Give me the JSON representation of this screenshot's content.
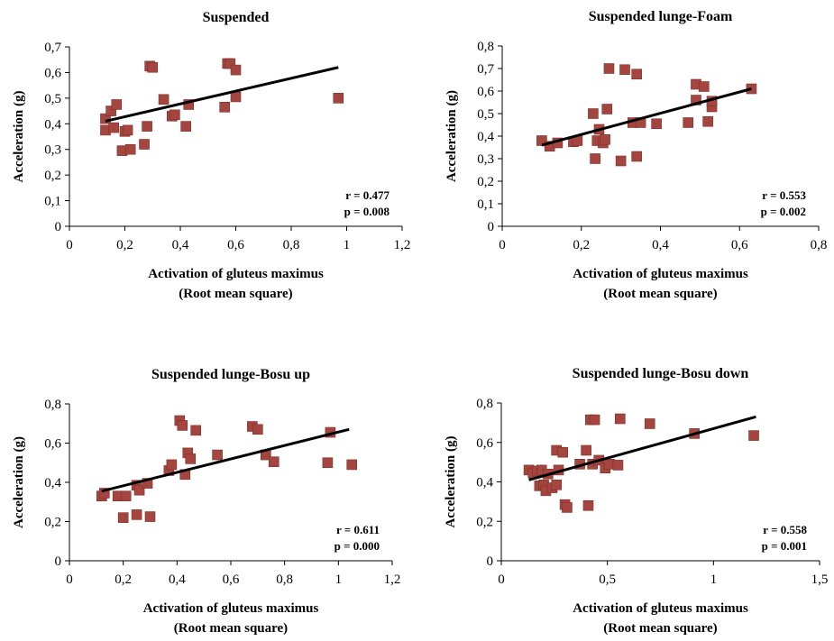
{
  "chart_data": [
    {
      "type": "scatter",
      "title": "Suspended",
      "xlabel": [
        "Activation of gluteus maximus",
        "(Root mean square)"
      ],
      "ylabel": "Acceleration (g)",
      "xlim": [
        0,
        1.2
      ],
      "ylim": [
        0,
        0.7
      ],
      "xticks": [
        0,
        0.2,
        0.4,
        0.6,
        0.8,
        1,
        1.2
      ],
      "yticks": [
        0,
        0.1,
        0.2,
        0.3,
        0.4,
        0.5,
        0.6,
        0.7
      ],
      "xtick_labels": [
        "0",
        "0,2",
        "0,4",
        "0,6",
        "0,8",
        "1",
        "1,2"
      ],
      "ytick_labels": [
        "0",
        "0,1",
        "0,2",
        "0,3",
        "0,4",
        "0,5",
        "0,6",
        "0,7"
      ],
      "grid": false,
      "stats": [
        "r = 0.477",
        "p = 0.008"
      ],
      "trendline": {
        "x": [
          0.13,
          0.97
        ],
        "y": [
          0.41,
          0.62
        ]
      },
      "points": [
        [
          0.13,
          0.42
        ],
        [
          0.13,
          0.375
        ],
        [
          0.15,
          0.45
        ],
        [
          0.16,
          0.385
        ],
        [
          0.17,
          0.475
        ],
        [
          0.19,
          0.295
        ],
        [
          0.2,
          0.37
        ],
        [
          0.21,
          0.375
        ],
        [
          0.22,
          0.3
        ],
        [
          0.27,
          0.32
        ],
        [
          0.28,
          0.39
        ],
        [
          0.29,
          0.625
        ],
        [
          0.3,
          0.62
        ],
        [
          0.34,
          0.495
        ],
        [
          0.37,
          0.43
        ],
        [
          0.38,
          0.435
        ],
        [
          0.42,
          0.39
        ],
        [
          0.43,
          0.475
        ],
        [
          0.56,
          0.465
        ],
        [
          0.57,
          0.635
        ],
        [
          0.58,
          0.635
        ],
        [
          0.6,
          0.61
        ],
        [
          0.6,
          0.505
        ],
        [
          0.97,
          0.5
        ]
      ]
    },
    {
      "type": "scatter",
      "title": "Suspended lunge-Foam",
      "xlabel": [
        "Activation of gluteus maximus",
        "(Root mean square)"
      ],
      "ylabel": "Acceleration (g)",
      "xlim": [
        0,
        0.8
      ],
      "ylim": [
        0,
        0.8
      ],
      "xticks": [
        0,
        0.2,
        0.4,
        0.6,
        0.8
      ],
      "yticks": [
        0,
        0.1,
        0.2,
        0.3,
        0.4,
        0.5,
        0.6,
        0.7,
        0.8
      ],
      "xtick_labels": [
        "0",
        "0,2",
        "0,4",
        "0,6",
        "0,8"
      ],
      "ytick_labels": [
        "0",
        "0,1",
        "0,2",
        "0,3",
        "0,4",
        "0,5",
        "0,6",
        "0,7",
        "0,8"
      ],
      "grid": false,
      "stats": [
        "r = 0.553",
        "p = 0.002"
      ],
      "trendline": {
        "x": [
          0.1,
          0.63
        ],
        "y": [
          0.36,
          0.61
        ]
      },
      "points": [
        [
          0.1,
          0.38
        ],
        [
          0.12,
          0.355
        ],
        [
          0.14,
          0.37
        ],
        [
          0.18,
          0.375
        ],
        [
          0.19,
          0.38
        ],
        [
          0.23,
          0.5
        ],
        [
          0.235,
          0.3
        ],
        [
          0.24,
          0.38
        ],
        [
          0.245,
          0.43
        ],
        [
          0.255,
          0.37
        ],
        [
          0.26,
          0.385
        ],
        [
          0.265,
          0.52
        ],
        [
          0.27,
          0.7
        ],
        [
          0.3,
          0.29
        ],
        [
          0.31,
          0.695
        ],
        [
          0.33,
          0.46
        ],
        [
          0.34,
          0.31
        ],
        [
          0.34,
          0.675
        ],
        [
          0.35,
          0.46
        ],
        [
          0.39,
          0.455
        ],
        [
          0.47,
          0.46
        ],
        [
          0.49,
          0.63
        ],
        [
          0.49,
          0.56
        ],
        [
          0.51,
          0.62
        ],
        [
          0.52,
          0.465
        ],
        [
          0.53,
          0.53
        ],
        [
          0.53,
          0.555
        ],
        [
          0.63,
          0.61
        ]
      ]
    },
    {
      "type": "scatter",
      "title": "Suspended lunge-Bosu up",
      "xlabel": [
        "Activation of gluteus maximus",
        "(Root mean square)"
      ],
      "ylabel": "Acceleration (g)",
      "xlim": [
        0,
        1.2
      ],
      "ylim": [
        0,
        0.8
      ],
      "xticks": [
        0,
        0.2,
        0.4,
        0.6,
        0.8,
        1,
        1.2
      ],
      "yticks": [
        0,
        0.2,
        0.4,
        0.6,
        0.8
      ],
      "xtick_labels": [
        "0",
        "0,2",
        "0,4",
        "0,6",
        "0,8",
        "1",
        "1,2"
      ],
      "ytick_labels": [
        "0",
        "0,2",
        "0,4",
        "0,6",
        "0,8"
      ],
      "grid": false,
      "stats": [
        "r = 0.611",
        "p = 0.000"
      ],
      "trendline": {
        "x": [
          0.12,
          1.04
        ],
        "y": [
          0.355,
          0.67
        ]
      },
      "points": [
        [
          0.12,
          0.33
        ],
        [
          0.13,
          0.345
        ],
        [
          0.18,
          0.33
        ],
        [
          0.2,
          0.22
        ],
        [
          0.21,
          0.33
        ],
        [
          0.25,
          0.235
        ],
        [
          0.25,
          0.385
        ],
        [
          0.26,
          0.36
        ],
        [
          0.29,
          0.395
        ],
        [
          0.3,
          0.225
        ],
        [
          0.37,
          0.46
        ],
        [
          0.38,
          0.49
        ],
        [
          0.41,
          0.715
        ],
        [
          0.42,
          0.69
        ],
        [
          0.43,
          0.44
        ],
        [
          0.44,
          0.55
        ],
        [
          0.45,
          0.52
        ],
        [
          0.47,
          0.665
        ],
        [
          0.55,
          0.54
        ],
        [
          0.68,
          0.685
        ],
        [
          0.7,
          0.67
        ],
        [
          0.73,
          0.54
        ],
        [
          0.76,
          0.505
        ],
        [
          0.96,
          0.5
        ],
        [
          0.97,
          0.655
        ],
        [
          1.05,
          0.49
        ]
      ]
    },
    {
      "type": "scatter",
      "title": "Suspended lunge-Bosu down",
      "xlabel": [
        "Activation of gluteus maximus",
        "(Root mean square)"
      ],
      "ylabel": "Acceleration (g)",
      "xlim": [
        0,
        1.5
      ],
      "ylim": [
        0,
        0.8
      ],
      "xticks": [
        0,
        0.5,
        1,
        1.5
      ],
      "yticks": [
        0,
        0.2,
        0.4,
        0.6,
        0.8
      ],
      "xtick_labels": [
        "0",
        "0,5",
        "1",
        "1,5"
      ],
      "ytick_labels": [
        "0",
        "0,2",
        "0,4",
        "0,6",
        "0,8"
      ],
      "grid": false,
      "stats": [
        "r = 0.558",
        "p = 0.001"
      ],
      "trendline": {
        "x": [
          0.13,
          1.2
        ],
        "y": [
          0.41,
          0.73
        ]
      },
      "points": [
        [
          0.13,
          0.46
        ],
        [
          0.15,
          0.445
        ],
        [
          0.17,
          0.455
        ],
        [
          0.18,
          0.38
        ],
        [
          0.19,
          0.46
        ],
        [
          0.2,
          0.385
        ],
        [
          0.21,
          0.355
        ],
        [
          0.22,
          0.44
        ],
        [
          0.24,
          0.37
        ],
        [
          0.26,
          0.385
        ],
        [
          0.26,
          0.56
        ],
        [
          0.27,
          0.46
        ],
        [
          0.29,
          0.55
        ],
        [
          0.3,
          0.285
        ],
        [
          0.31,
          0.27
        ],
        [
          0.37,
          0.49
        ],
        [
          0.4,
          0.56
        ],
        [
          0.41,
          0.28
        ],
        [
          0.42,
          0.715
        ],
        [
          0.43,
          0.49
        ],
        [
          0.44,
          0.715
        ],
        [
          0.46,
          0.51
        ],
        [
          0.49,
          0.47
        ],
        [
          0.51,
          0.49
        ],
        [
          0.55,
          0.485
        ],
        [
          0.56,
          0.72
        ],
        [
          0.7,
          0.695
        ],
        [
          0.91,
          0.645
        ],
        [
          1.19,
          0.635
        ]
      ]
    }
  ]
}
